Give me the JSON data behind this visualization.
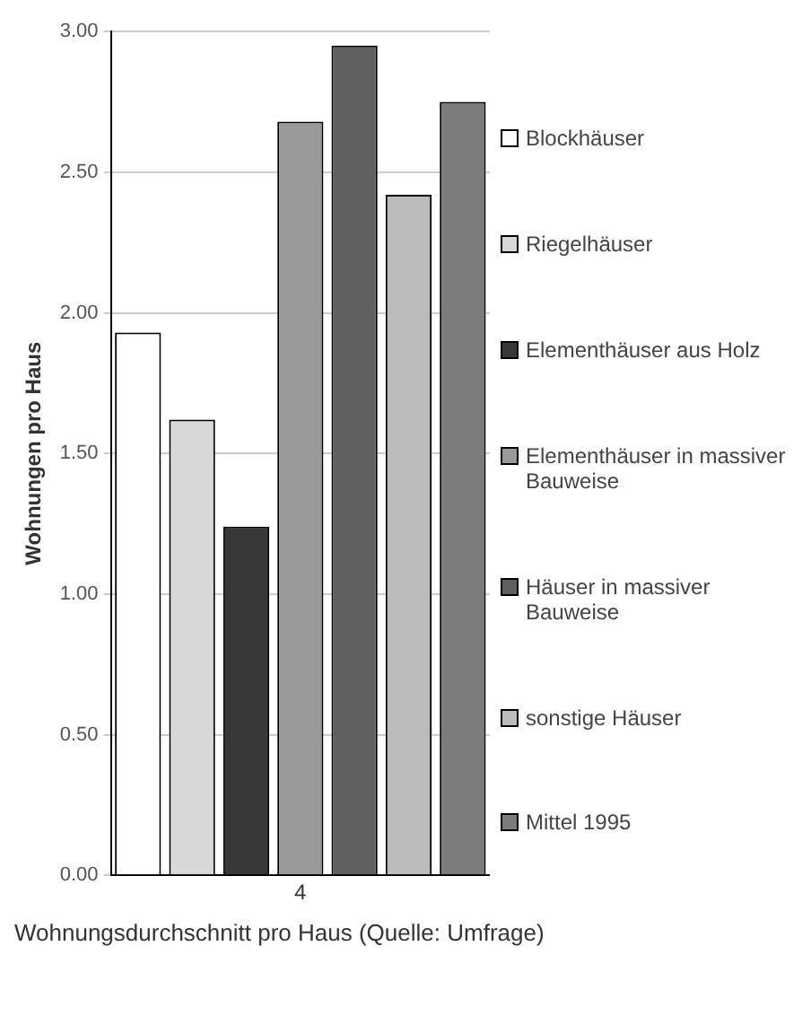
{
  "chart_data": {
    "type": "bar",
    "xlabel": "Wohnungsdurchschnitt pro Haus (Quelle: Umfrage)",
    "ylabel": "Wohnungen pro Haus",
    "categories": [
      null,
      null,
      null,
      "4",
      null,
      null,
      null
    ],
    "series": [
      {
        "name": "Blockhäuser",
        "color": "#ffffff",
        "values": [
          1.93,
          null,
          null,
          null,
          null,
          null,
          null
        ]
      },
      {
        "name": "Riegelhäuser",
        "color": "#d8d8d8",
        "values": [
          null,
          1.62,
          null,
          null,
          null,
          null,
          null
        ]
      },
      {
        "name": "Elementhäuser aus Holz",
        "color": "#383838",
        "values": [
          null,
          null,
          1.24,
          null,
          null,
          null,
          null
        ]
      },
      {
        "name": "Elementhäuser in massiver Bauweise",
        "color": "#9a9a9a",
        "values": [
          null,
          null,
          null,
          2.68,
          null,
          null,
          null
        ]
      },
      {
        "name": "Häuser in massiver Bauweise",
        "color": "#606060",
        "values": [
          null,
          null,
          null,
          null,
          2.95,
          null,
          null
        ]
      },
      {
        "name": "sonstige Häuser",
        "color": "#bcbcbc",
        "values": [
          null,
          null,
          null,
          null,
          null,
          2.42,
          null
        ]
      },
      {
        "name": "Mittel 1995",
        "color": "#7c7c7c",
        "values": [
          null,
          null,
          null,
          null,
          null,
          null,
          2.75
        ]
      }
    ],
    "ylim": [
      0,
      3
    ],
    "yticks": [
      {
        "value": 0,
        "label": "0.00"
      },
      {
        "value": 0.5,
        "label": "0.50"
      },
      {
        "value": 1,
        "label": "1.00"
      },
      {
        "value": 1.5,
        "label": "1.50"
      },
      {
        "value": 2,
        "label": "2.00"
      },
      {
        "value": 2.5,
        "label": "2.50"
      },
      {
        "value": 3,
        "label": "3.00"
      }
    ],
    "grid": "y",
    "legend": "right"
  }
}
